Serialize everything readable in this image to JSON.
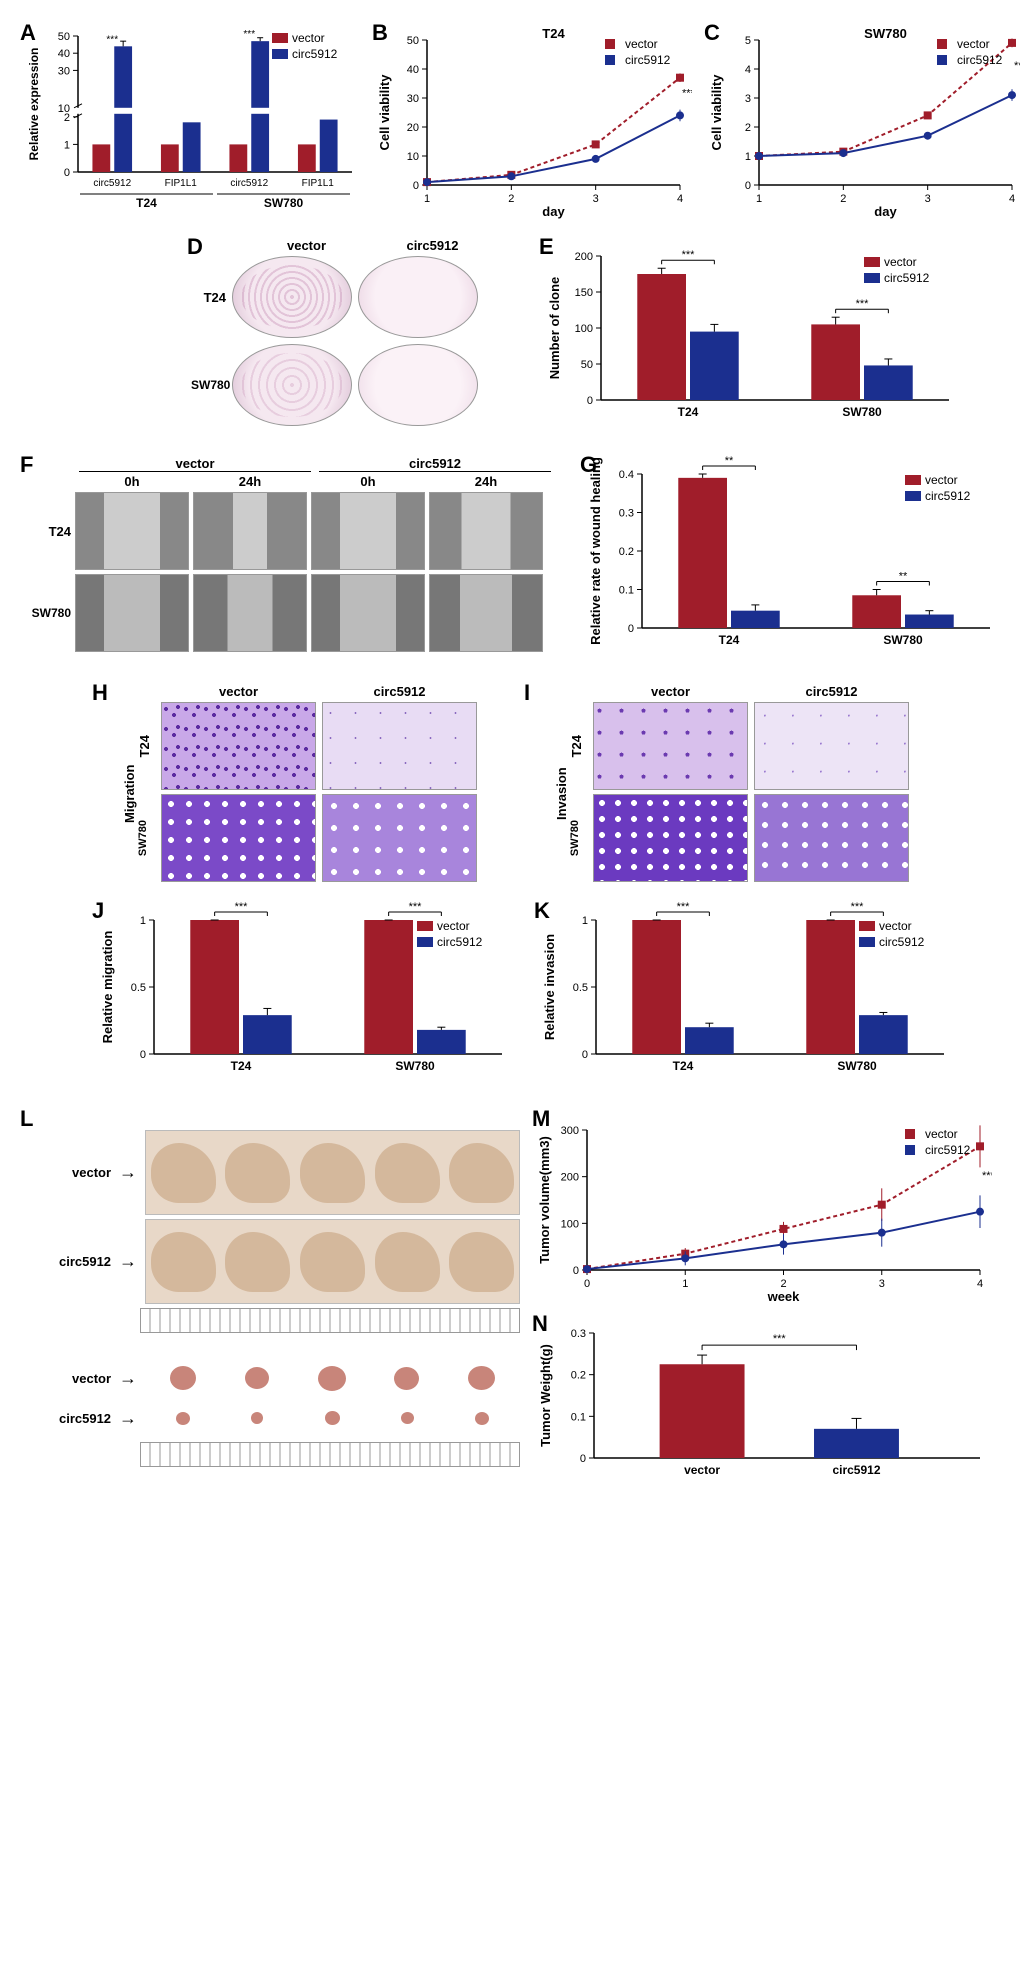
{
  "colors": {
    "vector": "#a01d2a",
    "circ": "#1b2f8f",
    "axis": "#000000",
    "panel_bg": "#ffffff"
  },
  "legend": {
    "vector": "vector",
    "circ": "circ5912"
  },
  "panelA": {
    "type": "bar",
    "ylabel": "Relative expression",
    "yticks_upper": [
      30,
      40,
      50
    ],
    "yticks_lower": [
      0,
      1,
      2,
      10
    ],
    "axis_break": true,
    "groups": [
      "circ5912",
      "FIP1L1",
      "circ5912",
      "FIP1L1"
    ],
    "supergroups": [
      "T24",
      "SW780"
    ],
    "values": {
      "vector": [
        1,
        1,
        1,
        1
      ],
      "circ": [
        44,
        1.8,
        47,
        1.9
      ]
    },
    "errors": {
      "circ": [
        3,
        0.1,
        2,
        0.1
      ],
      "vector": [
        0.1,
        0.1,
        0.1,
        0.1
      ]
    },
    "sig": [
      "***",
      "",
      "***",
      ""
    ]
  },
  "panelB": {
    "type": "line",
    "title": "T24",
    "xlabel": "day",
    "ylabel": "Cell viability",
    "xticks": [
      1,
      2,
      3,
      4
    ],
    "yticks": [
      0,
      10,
      20,
      30,
      40,
      50
    ],
    "series": {
      "vector": [
        1,
        3.5,
        14,
        37
      ],
      "circ": [
        1,
        3,
        9,
        24
      ]
    },
    "err": {
      "vector": [
        0.2,
        0.3,
        0.8,
        1.5
      ],
      "circ": [
        0.2,
        0.3,
        0.7,
        2
      ]
    },
    "sig_end": "***"
  },
  "panelC": {
    "type": "line",
    "title": "SW780",
    "xlabel": "day",
    "ylabel": "Cell viability",
    "xticks": [
      1,
      2,
      3,
      4
    ],
    "yticks": [
      0,
      1,
      2,
      3,
      4,
      5
    ],
    "series": {
      "vector": [
        1.0,
        1.15,
        2.4,
        4.9
      ],
      "circ": [
        1.0,
        1.1,
        1.7,
        3.1
      ]
    },
    "err": {
      "vector": [
        0.05,
        0.05,
        0.1,
        0.15
      ],
      "circ": [
        0.05,
        0.05,
        0.1,
        0.2
      ]
    },
    "sig_end": "***"
  },
  "panelD": {
    "type": "image-grid",
    "cols": [
      "vector",
      "circ5912"
    ],
    "rows": [
      "T24",
      "SW780"
    ]
  },
  "panelE": {
    "type": "bar",
    "ylabel": "Number of clone",
    "yticks": [
      0,
      50,
      100,
      150,
      200
    ],
    "groups": [
      "T24",
      "SW780"
    ],
    "values": {
      "vector": [
        175,
        105
      ],
      "circ": [
        95,
        48
      ]
    },
    "errors": {
      "vector": [
        8,
        10
      ],
      "circ": [
        10,
        9
      ]
    },
    "sig": [
      "***",
      "***"
    ]
  },
  "panelF": {
    "type": "image-grid",
    "supercols": [
      "vector",
      "circ5912"
    ],
    "cols": [
      "0h",
      "24h",
      "0h",
      "24h"
    ],
    "rows": [
      "T24",
      "SW780"
    ]
  },
  "panelG": {
    "type": "bar",
    "ylabel": "Relative rate of\nwound healing",
    "yticks": [
      0,
      0.1,
      0.2,
      0.3,
      0.4
    ],
    "groups": [
      "T24",
      "SW780"
    ],
    "values": {
      "vector": [
        0.39,
        0.085
      ],
      "circ": [
        0.045,
        0.035
      ]
    },
    "errors": {
      "vector": [
        0.01,
        0.015
      ],
      "circ": [
        0.015,
        0.01
      ]
    },
    "sig": [
      "**",
      "**"
    ]
  },
  "panelH": {
    "type": "image-grid",
    "title": "Migration",
    "cols": [
      "vector",
      "circ5912"
    ],
    "rows": [
      "T24",
      "SW780"
    ]
  },
  "panelI": {
    "type": "image-grid",
    "title": "Invasion",
    "cols": [
      "vector",
      "circ5912"
    ],
    "rows": [
      "T24",
      "SW780"
    ]
  },
  "panelJ": {
    "type": "bar",
    "ylabel": "Relative migration",
    "yticks": [
      0,
      0.5,
      1.0
    ],
    "groups": [
      "T24",
      "SW780"
    ],
    "values": {
      "vector": [
        1.0,
        1.0
      ],
      "circ": [
        0.29,
        0.18
      ]
    },
    "errors": {
      "vector": [
        0,
        0
      ],
      "circ": [
        0.05,
        0.02
      ]
    },
    "sig": [
      "***",
      "***"
    ]
  },
  "panelK": {
    "type": "bar",
    "ylabel": "Relative invasion",
    "yticks": [
      0,
      0.5,
      1.0
    ],
    "groups": [
      "T24",
      "SW780"
    ],
    "values": {
      "vector": [
        1.0,
        1.0
      ],
      "circ": [
        0.2,
        0.29
      ]
    },
    "errors": {
      "vector": [
        0,
        0
      ],
      "circ": [
        0.03,
        0.02
      ]
    },
    "sig": [
      "***",
      "***"
    ]
  },
  "panelL": {
    "type": "photo",
    "labels": [
      "vector",
      "circ5912",
      "vector",
      "circ5912"
    ]
  },
  "panelM": {
    "type": "line",
    "xlabel": "week",
    "ylabel": "Tumor volume(mm3)",
    "xticks": [
      0,
      1,
      2,
      3,
      4
    ],
    "yticks": [
      0,
      100,
      200,
      300
    ],
    "series": {
      "vector": [
        2,
        35,
        88,
        140,
        265
      ],
      "circ": [
        2,
        25,
        55,
        80,
        125
      ]
    },
    "err": {
      "vector": [
        0,
        12,
        15,
        35,
        45
      ],
      "circ": [
        0,
        15,
        22,
        30,
        35
      ]
    },
    "sig_end": "***"
  },
  "panelN": {
    "type": "bar",
    "ylabel": "Tumor Weight(g)",
    "yticks": [
      0,
      0.1,
      0.2,
      0.3
    ],
    "groups": [
      "vector",
      "circ5912"
    ],
    "single": true,
    "values": {
      "vector": [
        0.225
      ],
      "circ": [
        0.07
      ]
    },
    "errors": {
      "vector": [
        0.022
      ],
      "circ": [
        0.025
      ]
    },
    "sig": [
      "***"
    ]
  },
  "labels": {
    "A": "A",
    "B": "B",
    "C": "C",
    "D": "D",
    "E": "E",
    "F": "F",
    "G": "G",
    "H": "H",
    "I": "I",
    "J": "J",
    "K": "K",
    "L": "L",
    "M": "M",
    "N": "N"
  }
}
